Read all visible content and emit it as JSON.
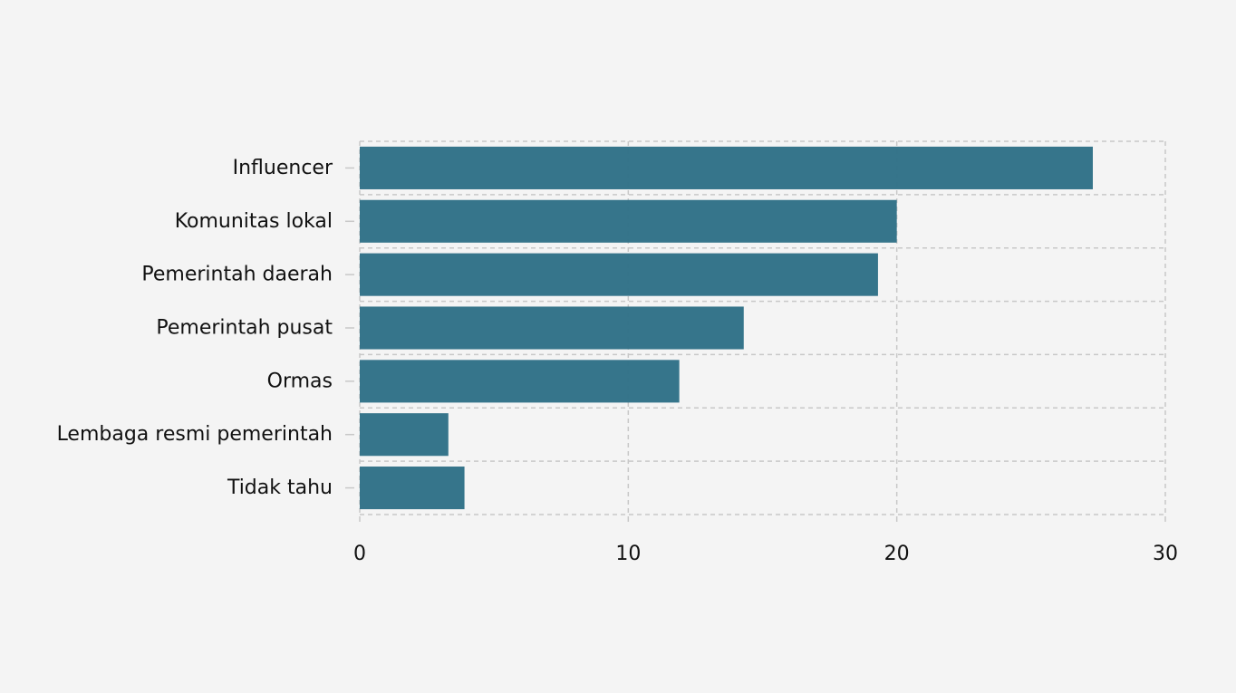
{
  "chart_data": {
    "type": "bar",
    "orientation": "horizontal",
    "categories": [
      "Influencer",
      "Komunitas lokal",
      "Pemerintah daerah",
      "Pemerintah pusat",
      "Ormas",
      "Lembaga resmi pemerintah",
      "Tidak tahu"
    ],
    "values": [
      27.3,
      20.0,
      19.3,
      14.3,
      11.9,
      3.3,
      3.9
    ],
    "x_ticks": [
      0,
      10,
      20,
      30
    ],
    "xlim": [
      0,
      30
    ],
    "title": "",
    "xlabel": "",
    "ylabel": "",
    "grid": true,
    "bar_color": "#2f7187",
    "grid_color": "#c8c8c8",
    "background_color": "#f4f4f4"
  }
}
